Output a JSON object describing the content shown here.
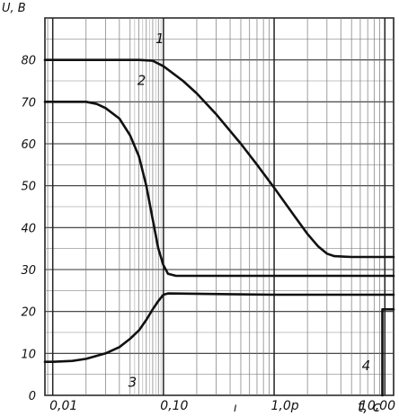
{
  "chart_data": {
    "type": "line",
    "ylabel": "U, B",
    "xlabel": "t, c",
    "x_scale": "log",
    "xlim": [
      0.0085,
      12
    ],
    "ylim": [
      0,
      90
    ],
    "grid": true,
    "y_ticks": [
      {
        "value": 0,
        "label": "0"
      },
      {
        "value": 10,
        "label": "10"
      },
      {
        "value": 20,
        "label": "20"
      },
      {
        "value": 30,
        "label": "30"
      },
      {
        "value": 40,
        "label": "40"
      },
      {
        "value": 50,
        "label": "50"
      },
      {
        "value": 60,
        "label": "60"
      },
      {
        "value": 70,
        "label": "70"
      },
      {
        "value": 80,
        "label": "80"
      }
    ],
    "x_ticks": [
      {
        "value": 0.01,
        "label": "0,01"
      },
      {
        "value": 0.1,
        "label": "0,10"
      },
      {
        "value": 1,
        "label": "1,0р"
      },
      {
        "value": 10,
        "label": "10,00"
      }
    ],
    "extra_mark": {
      "value": 1,
      "label": "ı"
    },
    "series": [
      {
        "name": "1",
        "points": [
          [
            0.0085,
            80
          ],
          [
            0.01,
            80
          ],
          [
            0.03,
            80
          ],
          [
            0.06,
            80
          ],
          [
            0.08,
            79.8
          ],
          [
            0.1,
            78.5
          ],
          [
            0.15,
            75
          ],
          [
            0.2,
            72
          ],
          [
            0.3,
            67
          ],
          [
            0.5,
            60
          ],
          [
            0.7,
            55
          ],
          [
            1.0,
            49.5
          ],
          [
            1.5,
            43
          ],
          [
            2.0,
            38.5
          ],
          [
            2.5,
            35.5
          ],
          [
            3.0,
            33.8
          ],
          [
            3.5,
            33.2
          ],
          [
            5,
            33
          ],
          [
            12,
            33
          ]
        ],
        "label_at": [
          0.085,
          84
        ]
      },
      {
        "name": "2",
        "points": [
          [
            0.0085,
            70
          ],
          [
            0.01,
            70
          ],
          [
            0.02,
            70
          ],
          [
            0.025,
            69.5
          ],
          [
            0.03,
            68.5
          ],
          [
            0.04,
            66
          ],
          [
            0.05,
            62
          ],
          [
            0.06,
            57
          ],
          [
            0.07,
            50
          ],
          [
            0.08,
            42
          ],
          [
            0.09,
            35
          ],
          [
            0.1,
            31
          ],
          [
            0.11,
            29
          ],
          [
            0.13,
            28.5
          ],
          [
            1,
            28.5
          ],
          [
            12,
            28.5
          ]
        ],
        "label_at": [
          0.058,
          74
        ]
      },
      {
        "name": "3",
        "points": [
          [
            0.0085,
            8
          ],
          [
            0.01,
            8
          ],
          [
            0.015,
            8.2
          ],
          [
            0.02,
            8.7
          ],
          [
            0.03,
            10
          ],
          [
            0.04,
            11.5
          ],
          [
            0.05,
            13.5
          ],
          [
            0.06,
            15.5
          ],
          [
            0.07,
            18
          ],
          [
            0.08,
            20.5
          ],
          [
            0.09,
            22.5
          ],
          [
            0.1,
            24
          ],
          [
            0.11,
            24.3
          ],
          [
            1,
            24
          ],
          [
            12,
            24
          ]
        ],
        "label_at": [
          0.048,
          2
        ]
      },
      {
        "name": "4",
        "points": [
          [
            9.5,
            0
          ],
          [
            9.5,
            20.5
          ],
          [
            12,
            20.5
          ]
        ],
        "label_at": [
          6.2,
          6
        ]
      }
    ]
  }
}
